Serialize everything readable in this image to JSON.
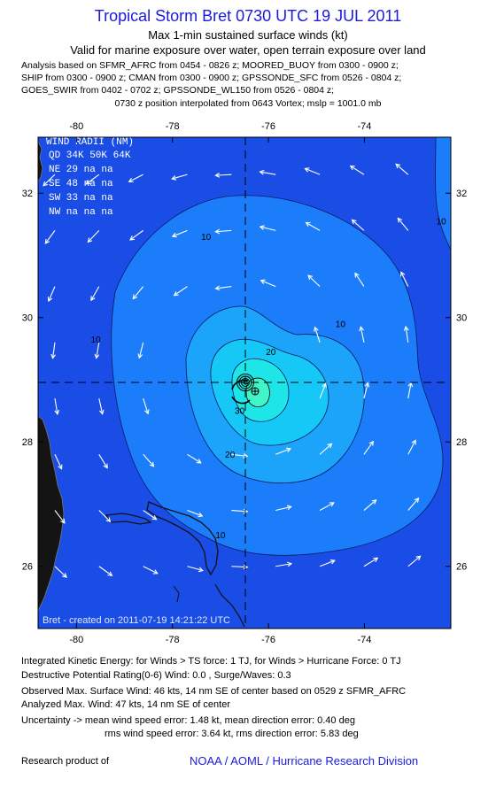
{
  "header": {
    "title": "Tropical Storm Bret 0730 UTC 19 JUL 2011",
    "subtitle": "Max 1-min sustained surface winds (kt)",
    "valid": "Valid for marine exposure over water, open terrain exposure over land",
    "analysis": [
      "Analysis based on SFMR_AFRC from 0454 - 0826 z; MOORED_BUOY from 0300 - 0900 z;",
      "SHIP from 0300 - 0900 z; CMAN from 0300 - 0900 z; GPSSONDE_SFC from 0526 - 0804 z;",
      "GOES_SWIR from 0402 - 0702 z; GPSSONDE_WL150 from 0526 - 0804 z;"
    ],
    "position": "0730 z position interpolated from 0643 Vortex; mslp = 1001.0 mb"
  },
  "wind_radii": {
    "title": "WIND RADII (NM)",
    "header": [
      "QD",
      "34K",
      "50K",
      "64K"
    ],
    "rows": [
      [
        "NE",
        "29",
        "na",
        "na"
      ],
      [
        "SE",
        "48",
        "na",
        "na"
      ],
      [
        "SW",
        "33",
        "na",
        "na"
      ],
      [
        "NW",
        "na",
        "na",
        "na"
      ]
    ]
  },
  "credit": "Bret - created on 2011-07-19 14:21:22 UTC",
  "footer": {
    "ike": "Integrated Kinetic Energy:  for Winds > TS force: 1 TJ,  for Winds > Hurricane Force: 0 TJ",
    "dpr": "Destructive Potential Rating(0-6)   Wind: 0.0 , Surge/Waves: 0.3",
    "observed": "Observed Max. Surface Wind: 46 kts, 14 nm SE of center based on 0529 z SFMR_AFRC",
    "analyzed": "Analyzed Max. Wind: 47 kts, 14 nm SE of center",
    "uncert1": "Uncertainty -> mean wind speed error: 1.48 kt,   mean direction error: 0.40 deg",
    "uncert2": "rms wind speed error: 3.64 kt,   rms direction error: 5.83 deg",
    "research": "Research product of",
    "org": "NOAA / AOML / Hurricane Research Division"
  },
  "chart_data": {
    "type": "contour map",
    "xlim": [
      -80.8,
      -72.2
    ],
    "ylim": [
      25.0,
      32.9
    ],
    "x_ticks": [
      -80,
      -78,
      -76,
      -74
    ],
    "y_ticks": [
      26,
      28,
      30,
      32
    ],
    "x_tick_labels": [
      "-80",
      "-78",
      "-76",
      "-74"
    ],
    "y_tick_labels": [
      "26",
      "28",
      "30",
      "32"
    ],
    "center": {
      "lon": -76.55,
      "lat": 29.2
    },
    "max_wind_location": {
      "lon": -76.35,
      "lat": 29.05
    },
    "contour_labels": [
      {
        "text": "10",
        "lon": -77.3,
        "lat": 31.25
      },
      {
        "text": "10",
        "lon": -79.6,
        "lat": 29.6
      },
      {
        "text": "10",
        "lon": -74.5,
        "lat": 29.85
      },
      {
        "text": "10",
        "lon": -77.0,
        "lat": 26.45
      },
      {
        "text": "10",
        "lon": -72.4,
        "lat": 31.5
      },
      {
        "text": "20",
        "lon": -75.95,
        "lat": 29.4
      },
      {
        "text": "20",
        "lon": -76.8,
        "lat": 27.75
      },
      {
        "text": "30",
        "lon": -76.6,
        "lat": 28.45
      }
    ],
    "colors": {
      "ocean": "#1a4de6",
      "land": "#1a1a1a",
      "c10": "#1c7dfa",
      "c20": "#1ca3fa",
      "c30": "#16c8f6",
      "c40": "#1ee6e6",
      "c45": "#40f5c8",
      "arrow": "#ffffff",
      "title": "#1a1adf"
    }
  }
}
